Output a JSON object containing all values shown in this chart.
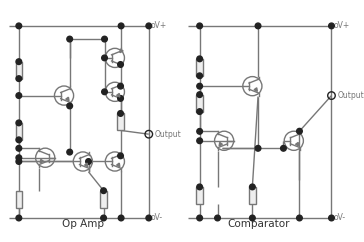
{
  "bg_color": "#ffffff",
  "line_color": "#777777",
  "dot_color": "#222222",
  "text_color": "#777777",
  "title_color": "#333333",
  "lw": 1.0,
  "tr": 0.042,
  "op_amp_label": "Op Amp",
  "comp_label": "Comparator",
  "vplus_label": "oV+",
  "vminus_label": "oV-",
  "output_label": "Output"
}
